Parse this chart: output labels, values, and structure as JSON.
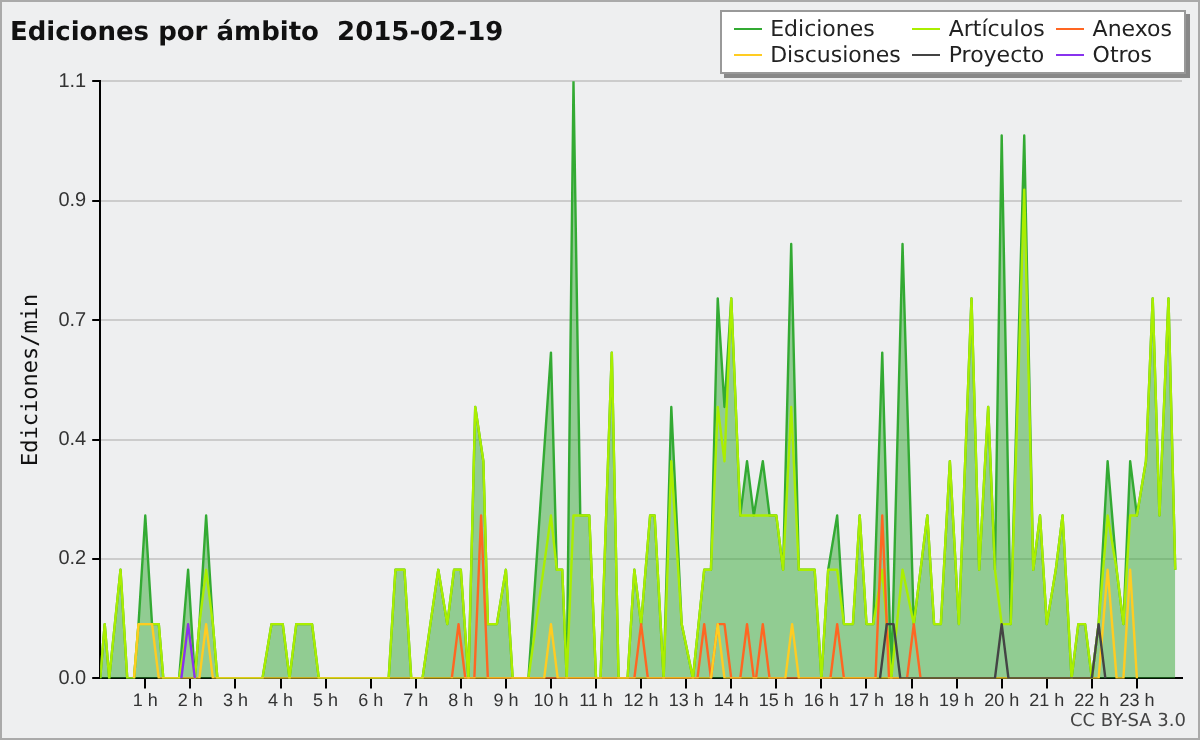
{
  "chart_data": {
    "type": "line",
    "title": "Ediciones por ámbito  2015-02-19",
    "ylabel": "Ediciones/min",
    "annotations": [
      "CC BY-SA 3.0"
    ],
    "xlim": [
      0,
      24
    ],
    "xticks": [
      {
        "value": 1,
        "label": "1 h"
      },
      {
        "value": 2,
        "label": "2 h"
      },
      {
        "value": 3,
        "label": "3 h"
      },
      {
        "value": 4,
        "label": "4 h"
      },
      {
        "value": 5,
        "label": "5 h"
      },
      {
        "value": 6,
        "label": "6 h"
      },
      {
        "value": 7,
        "label": "7 h"
      },
      {
        "value": 8,
        "label": "8 h"
      },
      {
        "value": 9,
        "label": "9 h"
      },
      {
        "value": 10,
        "label": "10 h"
      },
      {
        "value": 11,
        "label": "11 h"
      },
      {
        "value": 12,
        "label": "12 h"
      },
      {
        "value": 13,
        "label": "13 h"
      },
      {
        "value": 14,
        "label": "14 h"
      },
      {
        "value": 15,
        "label": "15 h"
      },
      {
        "value": 16,
        "label": "16 h"
      },
      {
        "value": 17,
        "label": "17 h"
      },
      {
        "value": 18,
        "label": "18 h"
      },
      {
        "value": 19,
        "label": "19 h"
      },
      {
        "value": 20,
        "label": "20 h"
      },
      {
        "value": 21,
        "label": "21 h"
      },
      {
        "value": 22,
        "label": "22 h"
      },
      {
        "value": 23,
        "label": "23 h"
      }
    ],
    "ylim": [
      0,
      1.1
    ],
    "yticks": [
      {
        "value": 0,
        "label": "0.0"
      },
      {
        "value": 0.22,
        "label": "0.2"
      },
      {
        "value": 0.44,
        "label": "0.4"
      },
      {
        "value": 0.66,
        "label": "0.7"
      },
      {
        "value": 0.88,
        "label": "0.9"
      },
      {
        "value": 1.1,
        "label": "1.1"
      }
    ],
    "grid": "y",
    "legend": "top right",
    "x": [
      0,
      0.1,
      0.2,
      0.45,
      0.6,
      0.75,
      0.85,
      1,
      1.15,
      1.3,
      1.4,
      1.75,
      1.95,
      2.1,
      2.2,
      2.35,
      2.5,
      2.6,
      3.6,
      3.8,
      4.05,
      4.2,
      4.35,
      4.7,
      4.85,
      6.4,
      6.55,
      6.75,
      6.9,
      7.15,
      7.5,
      7.7,
      7.85,
      8,
      8.17,
      8.32,
      8.5,
      8.6,
      8.8,
      9,
      9.15,
      9.5,
      10,
      10.13,
      10.25,
      10.35,
      10.5,
      10.65,
      10.85,
      11,
      11.1,
      11.35,
      11.5,
      11.7,
      11.85,
      12,
      12.2,
      12.3,
      12.5,
      12.67,
      12.9,
      13.15,
      13.4,
      13.55,
      13.7,
      13.85,
      14,
      14.2,
      14.35,
      14.5,
      14.7,
      14.85,
      15,
      15.15,
      15.33,
      15.5,
      15.85,
      16,
      16.15,
      16.35,
      16.5,
      16.7,
      16.85,
      17,
      17.15,
      17.35,
      17.55,
      17.8,
      18.05,
      18.35,
      18.5,
      18.65,
      18.85,
      19.05,
      19.33,
      19.5,
      19.7,
      19.85,
      20,
      20.2,
      20.5,
      20.7,
      20.85,
      21,
      21.2,
      21.35,
      21.55,
      21.7,
      21.85,
      22,
      22.15,
      22.35,
      22.55,
      22.7,
      22.85,
      23,
      23.2,
      23.35,
      23.5,
      23.7,
      23.85
    ],
    "series": [
      {
        "name": "Ediciones",
        "type": "area",
        "color": "#33aa33",
        "values": [
          0,
          0.1,
          0,
          0.2,
          0,
          0,
          0.1,
          0.3,
          0.1,
          0.1,
          0,
          0,
          0.2,
          0,
          0.1,
          0.3,
          0.1,
          0,
          0,
          0.1,
          0.1,
          0,
          0.1,
          0.1,
          0,
          0,
          0.2,
          0.2,
          0,
          0,
          0.2,
          0.1,
          0.2,
          0.2,
          0,
          0.5,
          0.4,
          0.1,
          0.1,
          0.2,
          0,
          0,
          0.6,
          0.2,
          0.2,
          0,
          1.1,
          0.3,
          0.3,
          0,
          0,
          0.6,
          0,
          0,
          0.2,
          0.1,
          0.3,
          0.3,
          0,
          0.5,
          0.1,
          0,
          0.2,
          0.2,
          0.7,
          0.5,
          0.7,
          0.3,
          0.4,
          0.3,
          0.4,
          0.3,
          0.3,
          0.2,
          0.8,
          0.2,
          0.2,
          0,
          0.2,
          0.3,
          0.1,
          0.1,
          0.3,
          0.1,
          0.1,
          0.6,
          0,
          0.8,
          0.1,
          0.3,
          0.1,
          0.1,
          0.4,
          0.1,
          0.7,
          0.2,
          0.5,
          0.2,
          1,
          0.1,
          1,
          0.2,
          0.3,
          0.1,
          0.2,
          0.3,
          0,
          0.1,
          0.1,
          0,
          0.1,
          0.4,
          0.2,
          0.1,
          0.4,
          0.3,
          0.4,
          0.7,
          0.3,
          0.7,
          0.2
        ]
      },
      {
        "name": "Artículos",
        "color": "#aaee00",
        "values": [
          0,
          0.1,
          0,
          0.2,
          0,
          0,
          0.1,
          0.1,
          0.1,
          0.1,
          0,
          0,
          0.1,
          0,
          0.1,
          0.2,
          0.1,
          0,
          0,
          0.1,
          0.1,
          0,
          0.1,
          0.1,
          0,
          0,
          0.2,
          0.2,
          0,
          0,
          0.2,
          0.1,
          0.2,
          0.2,
          0,
          0.5,
          0.4,
          0.1,
          0.1,
          0.2,
          0,
          0,
          0.3,
          0.2,
          0.2,
          0,
          0.3,
          0.3,
          0.3,
          0,
          0,
          0.6,
          0,
          0,
          0.2,
          0.1,
          0.3,
          0.3,
          0,
          0.4,
          0.1,
          0,
          0.2,
          0.2,
          0.5,
          0.4,
          0.7,
          0.3,
          0.3,
          0.3,
          0.3,
          0.3,
          0.3,
          0.2,
          0.5,
          0.2,
          0.2,
          0,
          0.2,
          0.2,
          0.1,
          0.1,
          0.3,
          0.1,
          0.1,
          0.2,
          0,
          0.2,
          0.1,
          0.3,
          0.1,
          0.1,
          0.4,
          0.1,
          0.7,
          0.2,
          0.5,
          0.2,
          0.1,
          0.1,
          0.9,
          0.2,
          0.3,
          0.1,
          0.2,
          0.3,
          0,
          0.1,
          0.1,
          0,
          0.1,
          0.3,
          0.2,
          0.1,
          0.3,
          0.3,
          0.4,
          0.7,
          0.3,
          0.7,
          0.2
        ]
      },
      {
        "name": "Anexos",
        "color": "#ff6622",
        "x": [
          7.8,
          7.95,
          8.1,
          8.3,
          8.45,
          8.6,
          11.85,
          12,
          12.15,
          13.25,
          13.4,
          13.55,
          13.7,
          13.85,
          14,
          14.2,
          14.35,
          14.5,
          14.55,
          14.7,
          14.85,
          16.2,
          16.35,
          16.5,
          17.2,
          17.35,
          17.5,
          17.9,
          18.05,
          18.2
        ],
        "values": [
          0,
          0.1,
          0,
          0,
          0.3,
          0,
          0,
          0.1,
          0,
          0,
          0.1,
          0,
          0.1,
          0.1,
          0,
          0,
          0.1,
          0,
          0,
          0.1,
          0,
          0,
          0.1,
          0,
          0,
          0.3,
          0,
          0,
          0.1,
          0
        ]
      },
      {
        "name": "Discusiones",
        "color": "#ffcc22",
        "x": [
          0.75,
          0.85,
          1.15,
          1.3,
          2.2,
          2.35,
          2.5,
          9.85,
          10,
          10.15,
          13.55,
          13.7,
          13.85,
          15.2,
          15.35,
          15.5,
          22.15,
          22.35,
          22.55,
          22.7,
          22.85,
          23
        ],
        "values": [
          0,
          0.1,
          0.1,
          0,
          0,
          0.1,
          0,
          0,
          0.1,
          0,
          0,
          0.1,
          0,
          0,
          0.1,
          0,
          0,
          0.2,
          0,
          0,
          0.2,
          0
        ]
      },
      {
        "name": "Proyecto",
        "color": "#444444",
        "x": [
          17.3,
          17.45,
          17.6,
          17.75,
          19.85,
          20,
          20.15,
          22,
          22.15,
          22.3
        ],
        "values": [
          0,
          0.1,
          0.1,
          0,
          0,
          0.1,
          0,
          0,
          0.1,
          0
        ]
      },
      {
        "name": "Otros",
        "color": "#8833ee",
        "x": [
          1.8,
          1.95,
          2.1
        ],
        "values": [
          0,
          0.1,
          0
        ]
      }
    ]
  }
}
